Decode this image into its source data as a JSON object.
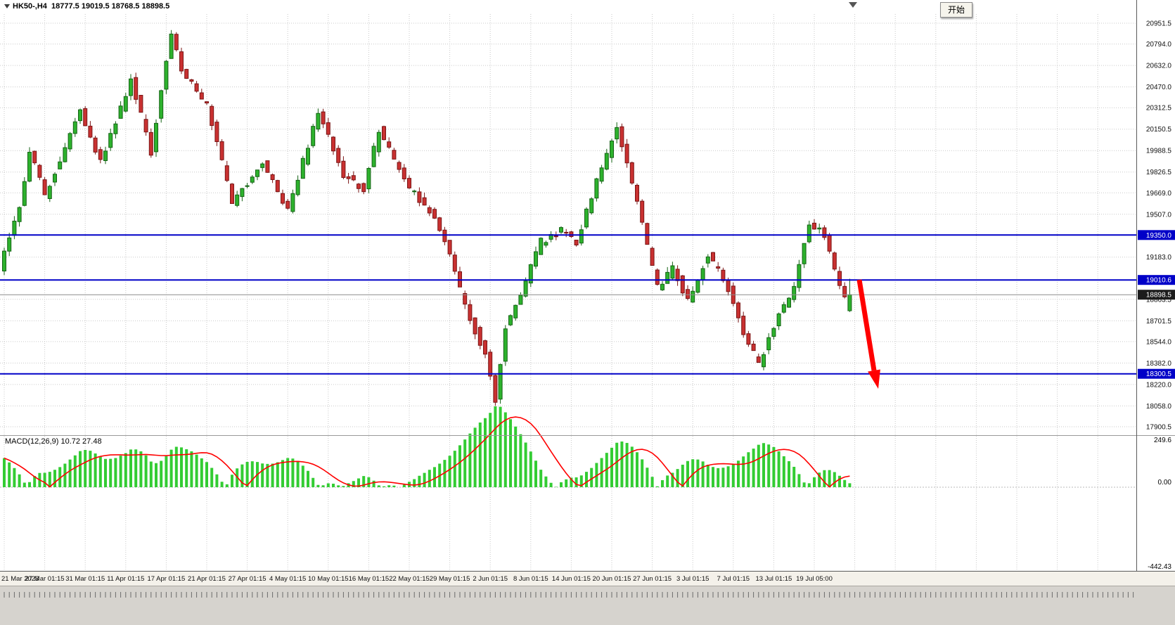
{
  "window": {
    "chart_title": "HK50-,H4  18777.5 19019.5 18768.5 18898.5",
    "start_tooltip": "开始"
  },
  "colors": {
    "up": "#2DB22D",
    "up_border": "#156315",
    "down": "#C93131",
    "down_border": "#7A1414",
    "level_blue": "#0000C8",
    "current_price_bg": "#1C1C1C",
    "macd_bar": "#33CC33",
    "macd_signal": "#FF0000",
    "grid": "#C9C9C9",
    "arrow": "#FF0000"
  },
  "price_axis": {
    "ticks": [
      "20951.5",
      "20794.0",
      "20632.0",
      "20470.0",
      "20312.5",
      "20150.5",
      "19988.5",
      "19826.5",
      "19669.0",
      "19507.0",
      "19183.0",
      "18863.5",
      "18701.5",
      "18544.0",
      "18382.0",
      "18220.0",
      "18058.0",
      "17900.5"
    ]
  },
  "levels": [
    {
      "value": 19350.0,
      "label": "19350.0"
    },
    {
      "value": 19010.6,
      "label": "19010.6"
    },
    {
      "value": 18300.5,
      "label": "18300.5"
    }
  ],
  "current_price": {
    "value": 18898.5,
    "label": "18898.5"
  },
  "time_axis": {
    "labels": [
      "21 Mar 2023",
      "27 Mar 01:15",
      "31 Mar 01:15",
      "11 Apr 01:15",
      "17 Apr 01:15",
      "21 Apr 01:15",
      "27 Apr 01:15",
      "4 May 01:15",
      "10 May 01:15",
      "16 May 01:15",
      "22 May 01:15",
      "29 May 01:15",
      "2 Jun 01:15",
      "8 Jun 01:15",
      "14 Jun 01:15",
      "20 Jun 01:15",
      "27 Jun 01:15",
      "3 Jul 01:15",
      "7 Jul 01:15",
      "13 Jul 01:15",
      "19 Jul 05:00"
    ]
  },
  "macd": {
    "label": "MACD(12,26,9) 10.72 27.48",
    "axis": [
      "249.6",
      "0.00",
      "-442.43"
    ]
  },
  "chart_data": {
    "type": "candlestick",
    "symbol": "HK50-",
    "timeframe": "H4",
    "ohlc_current": {
      "open": 18777.5,
      "high": 19019.5,
      "low": 18768.5,
      "close": 18898.5
    },
    "ylim": [
      17900.5,
      20951.5
    ],
    "candle_count": 168,
    "candles_per_label": 8,
    "price_path": [
      [
        0,
        19100
      ],
      [
        4,
        19550
      ],
      [
        6,
        20000
      ],
      [
        9,
        19650
      ],
      [
        16,
        20300
      ],
      [
        20,
        19900
      ],
      [
        26,
        20520
      ],
      [
        30,
        19980
      ],
      [
        34,
        20890
      ],
      [
        36,
        20600
      ],
      [
        41,
        20330
      ],
      [
        46,
        19600
      ],
      [
        52,
        19900
      ],
      [
        57,
        19540
      ],
      [
        63,
        20280
      ],
      [
        68,
        19800
      ],
      [
        72,
        19700
      ],
      [
        75,
        20150
      ],
      [
        81,
        19700
      ],
      [
        86,
        19500
      ],
      [
        89,
        19200
      ],
      [
        92,
        18800
      ],
      [
        96,
        18450
      ],
      [
        98,
        18100
      ],
      [
        100,
        18650
      ],
      [
        104,
        19000
      ],
      [
        107,
        19300
      ],
      [
        111,
        19380
      ],
      [
        114,
        19300
      ],
      [
        118,
        19750
      ],
      [
        122,
        20150
      ],
      [
        126,
        19600
      ],
      [
        130,
        18950
      ],
      [
        133,
        19100
      ],
      [
        136,
        18850
      ],
      [
        140,
        19200
      ],
      [
        144,
        18950
      ],
      [
        147,
        18600
      ],
      [
        150,
        18380
      ],
      [
        154,
        18750
      ],
      [
        157,
        18950
      ],
      [
        160,
        19450
      ],
      [
        163,
        19350
      ],
      [
        166,
        18950
      ],
      [
        167,
        18898.5
      ]
    ],
    "macd_ylim": [
      -442.43,
      249.6
    ],
    "macd_last": {
      "main": 10.72,
      "signal": 27.48
    }
  }
}
